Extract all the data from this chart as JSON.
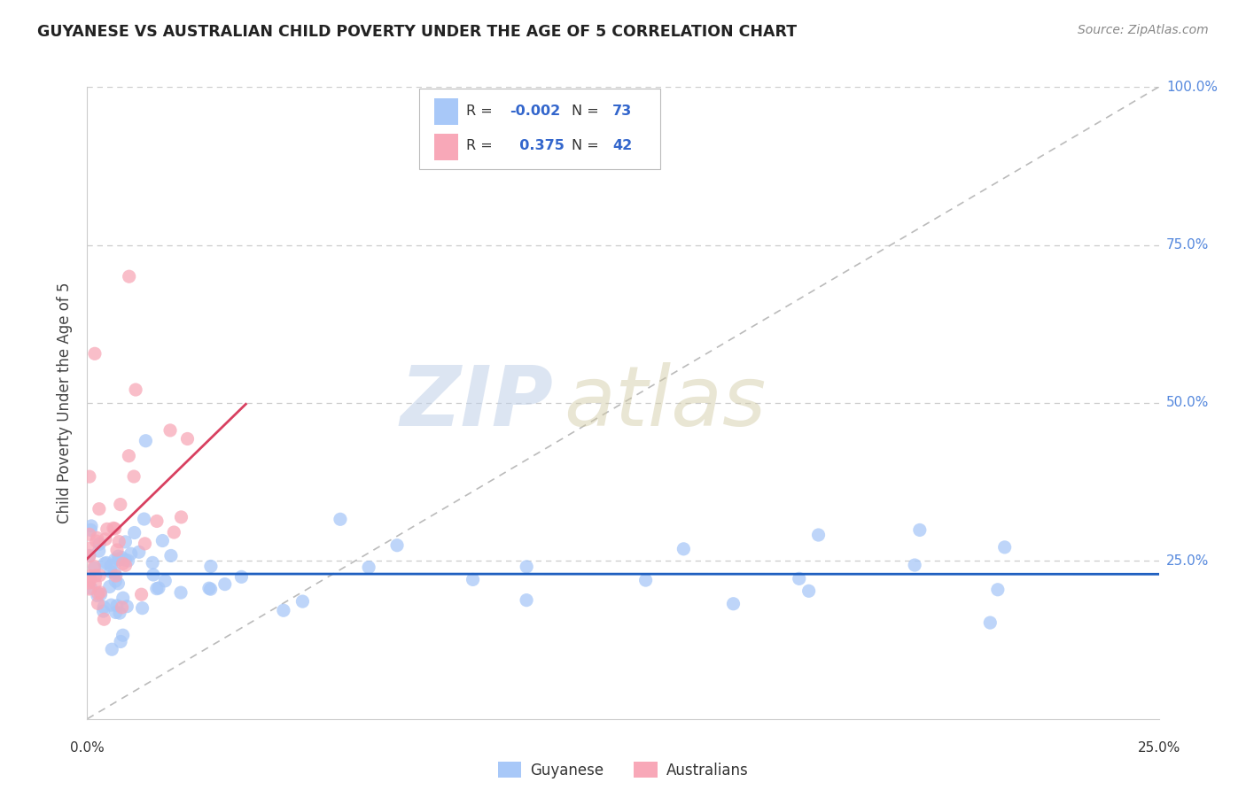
{
  "title": "GUYANESE VS AUSTRALIAN CHILD POVERTY UNDER THE AGE OF 5 CORRELATION CHART",
  "source": "Source: ZipAtlas.com",
  "ylabel": "Child Poverty Under the Age of 5",
  "xlim": [
    0.0,
    25.0
  ],
  "ylim": [
    0.0,
    100.0
  ],
  "blue_R": -0.002,
  "blue_N": 73,
  "pink_R": 0.375,
  "pink_N": 42,
  "legend_label1": "Guyanese",
  "legend_label2": "Australians",
  "blue_color": "#A8C8F8",
  "pink_color": "#F8A8B8",
  "blue_line_color": "#2060C0",
  "pink_line_color": "#D84060",
  "diag_color": "#BBBBBB",
  "watermark_zip": "ZIP",
  "watermark_atlas": "atlas",
  "background_color": "#FFFFFF",
  "grid_color": "#CCCCCC",
  "title_color": "#222222",
  "source_color": "#888888",
  "ylabel_color": "#444444",
  "tick_color": "#333333",
  "right_tick_color": "#5588DD",
  "legend_r_n_color": "#3366CC",
  "legend_label_color": "#333333"
}
